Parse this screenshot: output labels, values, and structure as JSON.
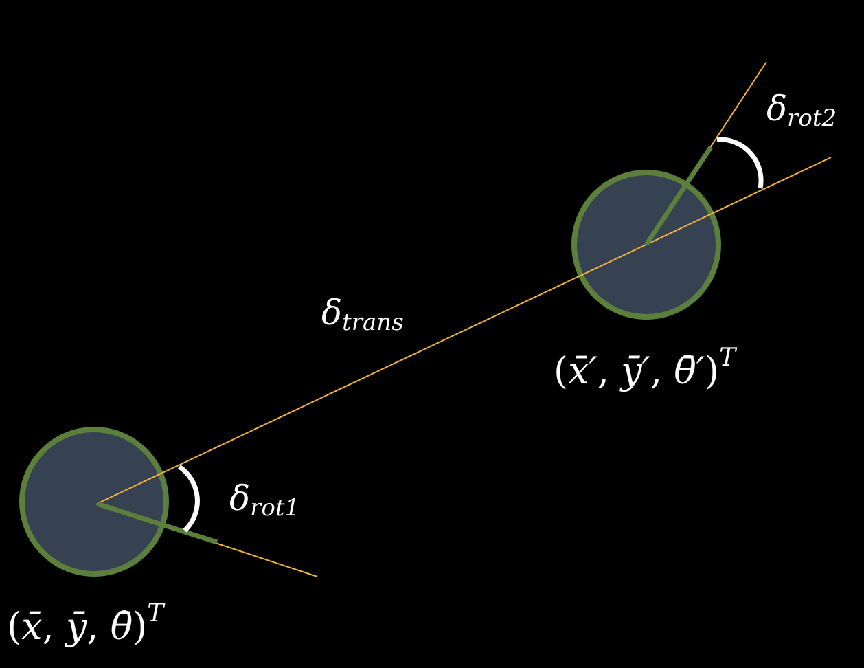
{
  "colors": {
    "background": "#000000",
    "robot_fill": "#364152",
    "robot_outline": "#5c7f3b",
    "heading": "#5c7f3b",
    "guide_line": "#f2b23a",
    "angle_arc": "#ffffff",
    "text": "#ffffff"
  },
  "labels": {
    "delta_symbol": "δ",
    "trans_sub": "trans",
    "rot1_sub": "rot1",
    "rot2_sub": "rot2",
    "pose_start": {
      "open": "(",
      "x": "x̄",
      "sep1": ", ",
      "y": "ȳ",
      "sep2": ", ",
      "theta": "θ̄",
      "close": ")",
      "sup": "T"
    },
    "pose_end": {
      "open": "(",
      "x": "x̄′",
      "sep1": ", ",
      "y": "ȳ′",
      "sep2": ", ",
      "theta": "θ̄′",
      "close": ")",
      "sup": "T"
    }
  }
}
